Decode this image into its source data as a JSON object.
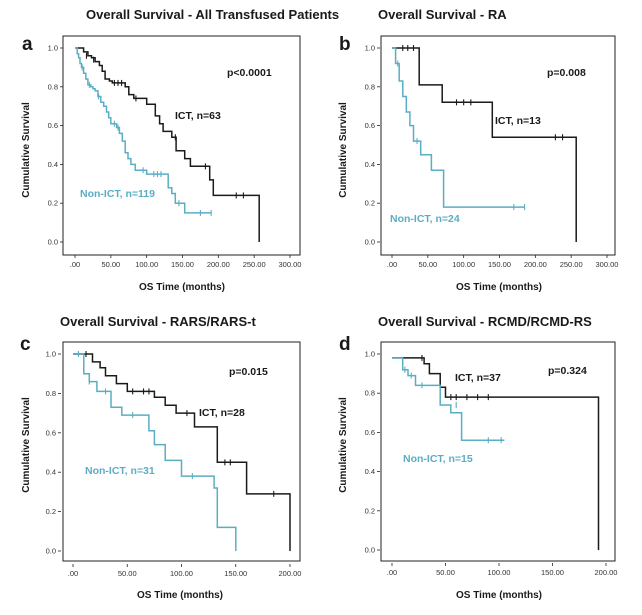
{
  "colors": {
    "ict": "#1a1a1a",
    "non_ict": "#5aaec4"
  },
  "chart_data": [
    {
      "type": "line",
      "panel_letter": "a",
      "title": "Overall Survival - All Transfused Patients",
      "xlabel": "OS Time (months)",
      "ylabel": "Cumulative Survival",
      "xlim": [
        0,
        300
      ],
      "ylim": [
        0,
        1
      ],
      "x_ticks": [
        ".00",
        "50.00",
        "100.00",
        "150.00",
        "200.00",
        "250.00",
        "300.00"
      ],
      "x_tick_values": [
        0,
        50,
        100,
        150,
        200,
        250,
        300
      ],
      "y_ticks": [
        "0.0",
        "0.2",
        "0.4",
        "0.6",
        "0.8",
        "1.0"
      ],
      "y_tick_values": [
        0,
        0.2,
        0.4,
        0.6,
        0.8,
        1.0
      ],
      "p_value": "p<0.0001",
      "series": [
        {
          "name": "ICT, n=63",
          "color": "#1a1a1a",
          "steps": [
            [
              0,
              1.0
            ],
            [
              12,
              0.98
            ],
            [
              18,
              0.96
            ],
            [
              23,
              0.95
            ],
            [
              28,
              0.93
            ],
            [
              34,
              0.91
            ],
            [
              38,
              0.88
            ],
            [
              42,
              0.84
            ],
            [
              48,
              0.83
            ],
            [
              52,
              0.82
            ],
            [
              70,
              0.8
            ],
            [
              75,
              0.76
            ],
            [
              82,
              0.74
            ],
            [
              100,
              0.71
            ],
            [
              112,
              0.65
            ],
            [
              118,
              0.61
            ],
            [
              123,
              0.57
            ],
            [
              135,
              0.54
            ],
            [
              141,
              0.47
            ],
            [
              153,
              0.43
            ],
            [
              161,
              0.39
            ],
            [
              188,
              0.32
            ],
            [
              193,
              0.24
            ],
            [
              257,
              0.0
            ]
          ],
          "end_x": 257,
          "censors": [
            [
              16,
              0.96
            ],
            [
              26,
              0.94
            ],
            [
              55,
              0.82
            ],
            [
              60,
              0.82
            ],
            [
              65,
              0.82
            ],
            [
              85,
              0.74
            ],
            [
              140,
              0.54
            ],
            [
              182,
              0.39
            ],
            [
              225,
              0.24
            ],
            [
              235,
              0.24
            ]
          ]
        },
        {
          "name": "Non-ICT, n=119",
          "color": "#5aaec4",
          "steps": [
            [
              0,
              1.0
            ],
            [
              3,
              0.97
            ],
            [
              5,
              0.95
            ],
            [
              7,
              0.92
            ],
            [
              9,
              0.9
            ],
            [
              12,
              0.87
            ],
            [
              15,
              0.84
            ],
            [
              18,
              0.81
            ],
            [
              22,
              0.8
            ],
            [
              25,
              0.79
            ],
            [
              28,
              0.78
            ],
            [
              32,
              0.75
            ],
            [
              36,
              0.72
            ],
            [
              40,
              0.7
            ],
            [
              44,
              0.67
            ],
            [
              47,
              0.64
            ],
            [
              50,
              0.61
            ],
            [
              58,
              0.59
            ],
            [
              62,
              0.56
            ],
            [
              66,
              0.52
            ],
            [
              70,
              0.46
            ],
            [
              74,
              0.43
            ],
            [
              78,
              0.4
            ],
            [
              84,
              0.37
            ],
            [
              100,
              0.35
            ],
            [
              130,
              0.28
            ],
            [
              135,
              0.25
            ],
            [
              140,
              0.2
            ],
            [
              153,
              0.15
            ],
            [
              190,
              0.15
            ]
          ],
          "end_x": 190,
          "censors": [
            [
              10,
              0.9
            ],
            [
              20,
              0.81
            ],
            [
              33,
              0.75
            ],
            [
              55,
              0.61
            ],
            [
              60,
              0.59
            ],
            [
              95,
              0.37
            ],
            [
              110,
              0.35
            ],
            [
              115,
              0.35
            ],
            [
              120,
              0.35
            ],
            [
              145,
              0.2
            ],
            [
              175,
              0.15
            ],
            [
              190,
              0.15
            ]
          ]
        }
      ],
      "annotations": {
        "ict_label": "ICT, n=63",
        "non_ict_label": "Non-ICT, n=119"
      }
    },
    {
      "type": "line",
      "panel_letter": "b",
      "title": "Overall Survival - RA",
      "xlabel": "OS Time (months)",
      "ylabel": "Cumulative Survival",
      "xlim": [
        0,
        300
      ],
      "ylim": [
        0,
        1
      ],
      "x_ticks": [
        ".00",
        "50.00",
        "100.00",
        "150.00",
        "200.00",
        "250.00",
        "300.00"
      ],
      "x_tick_values": [
        0,
        50,
        100,
        150,
        200,
        250,
        300
      ],
      "y_ticks": [
        "0.0",
        "0.2",
        "0.4",
        "0.6",
        "0.8",
        "1.0"
      ],
      "y_tick_values": [
        0,
        0.2,
        0.4,
        0.6,
        0.8,
        1.0
      ],
      "p_value": "p=0.008",
      "series": [
        {
          "name": "ICT, n=13",
          "color": "#1a1a1a",
          "steps": [
            [
              0,
              1.0
            ],
            [
              38,
              0.81
            ],
            [
              70,
              0.72
            ],
            [
              140,
              0.54
            ],
            [
              257,
              0.0
            ]
          ],
          "end_x": 257,
          "censors": [
            [
              15,
              1.0
            ],
            [
              22,
              1.0
            ],
            [
              30,
              1.0
            ],
            [
              90,
              0.72
            ],
            [
              100,
              0.72
            ],
            [
              110,
              0.72
            ],
            [
              228,
              0.54
            ],
            [
              238,
              0.54
            ]
          ]
        },
        {
          "name": "Non-ICT, n=24",
          "color": "#5aaec4",
          "steps": [
            [
              0,
              1.0
            ],
            [
              5,
              0.92
            ],
            [
              10,
              0.83
            ],
            [
              15,
              0.75
            ],
            [
              20,
              0.67
            ],
            [
              25,
              0.6
            ],
            [
              30,
              0.52
            ],
            [
              40,
              0.45
            ],
            [
              55,
              0.37
            ],
            [
              72,
              0.18
            ],
            [
              185,
              0.18
            ]
          ],
          "end_x": 185,
          "censors": [
            [
              8,
              0.92
            ],
            [
              35,
              0.52
            ],
            [
              170,
              0.18
            ],
            [
              185,
              0.18
            ]
          ]
        }
      ],
      "annotations": {
        "ict_label": "ICT, n=13",
        "non_ict_label": "Non-ICT, n=24"
      }
    },
    {
      "type": "line",
      "panel_letter": "c",
      "title": "Overall Survival - RARS/RARS-t",
      "xlabel": "OS Time (months)",
      "ylabel": "Cumulative Survival",
      "xlim": [
        0,
        200
      ],
      "ylim": [
        0,
        1
      ],
      "x_ticks": [
        ".00",
        "50.00",
        "100.00",
        "150.00",
        "200.00"
      ],
      "x_tick_values": [
        0,
        50,
        100,
        150,
        200
      ],
      "y_ticks": [
        "0.0",
        "0.2",
        "0.4",
        "0.6",
        "0.8",
        "1.0"
      ],
      "y_tick_values": [
        0,
        0.2,
        0.4,
        0.6,
        0.8,
        1.0
      ],
      "p_value": "p=0.015",
      "series": [
        {
          "name": "ICT, n=28",
          "color": "#1a1a1a",
          "steps": [
            [
              0,
              1.0
            ],
            [
              18,
              0.96
            ],
            [
              25,
              0.93
            ],
            [
              30,
              0.89
            ],
            [
              40,
              0.85
            ],
            [
              50,
              0.81
            ],
            [
              75,
              0.78
            ],
            [
              85,
              0.74
            ],
            [
              95,
              0.7
            ],
            [
              112,
              0.63
            ],
            [
              133,
              0.45
            ],
            [
              160,
              0.29
            ],
            [
              200,
              0.0
            ]
          ],
          "end_x": 200,
          "censors": [
            [
              12,
              1.0
            ],
            [
              55,
              0.81
            ],
            [
              65,
              0.81
            ],
            [
              70,
              0.81
            ],
            [
              105,
              0.7
            ],
            [
              140,
              0.45
            ],
            [
              145,
              0.45
            ],
            [
              185,
              0.29
            ]
          ]
        },
        {
          "name": "Non-ICT, n=31",
          "color": "#5aaec4",
          "steps": [
            [
              0,
              1.0
            ],
            [
              10,
              0.9
            ],
            [
              15,
              0.86
            ],
            [
              22,
              0.81
            ],
            [
              35,
              0.73
            ],
            [
              45,
              0.69
            ],
            [
              70,
              0.61
            ],
            [
              75,
              0.54
            ],
            [
              85,
              0.46
            ],
            [
              100,
              0.38
            ],
            [
              130,
              0.32
            ],
            [
              133,
              0.12
            ],
            [
              150,
              0.0
            ]
          ],
          "end_x": 150,
          "censors": [
            [
              5,
              1.0
            ],
            [
              15,
              0.86
            ],
            [
              30,
              0.81
            ],
            [
              55,
              0.69
            ],
            [
              110,
              0.38
            ]
          ]
        }
      ],
      "annotations": {
        "ict_label": "ICT, n=28",
        "non_ict_label": "Non-ICT, n=31"
      }
    },
    {
      "type": "line",
      "panel_letter": "d",
      "title": "Overall Survival - RCMD/RCMD-RS",
      "xlabel": "OS Time (months)",
      "ylabel": "Cumulative Survival",
      "xlim": [
        0,
        200
      ],
      "ylim": [
        0,
        1
      ],
      "x_ticks": [
        ".00",
        "50.00",
        "100.00",
        "150.00",
        "200.00"
      ],
      "x_tick_values": [
        0,
        50,
        100,
        150,
        200
      ],
      "y_ticks": [
        "0.0",
        "0.2",
        "0.4",
        "0.6",
        "0.8",
        "1.0"
      ],
      "y_tick_values": [
        0,
        0.2,
        0.4,
        0.6,
        0.8,
        1.0
      ],
      "p_value": "p=0.324",
      "series": [
        {
          "name": "ICT, n=37",
          "color": "#1a1a1a",
          "steps": [
            [
              0,
              0.98
            ],
            [
              30,
              0.95
            ],
            [
              35,
              0.9
            ],
            [
              45,
              0.83
            ],
            [
              50,
              0.78
            ],
            [
              193,
              0.0
            ]
          ],
          "end_x": 193,
          "censors": [
            [
              28,
              0.98
            ],
            [
              55,
              0.78
            ],
            [
              60,
              0.78
            ],
            [
              70,
              0.78
            ],
            [
              80,
              0.78
            ],
            [
              90,
              0.78
            ]
          ]
        },
        {
          "name": "Non-ICT, n=15",
          "color": "#5aaec4",
          "steps": [
            [
              0,
              0.98
            ],
            [
              10,
              0.92
            ],
            [
              15,
              0.89
            ],
            [
              22,
              0.84
            ],
            [
              45,
              0.74
            ],
            [
              55,
              0.7
            ],
            [
              65,
              0.56
            ],
            [
              105,
              0.56
            ]
          ],
          "end_x": 105,
          "censors": [
            [
              12,
              0.92
            ],
            [
              18,
              0.89
            ],
            [
              28,
              0.84
            ],
            [
              60,
              0.74
            ],
            [
              90,
              0.56
            ],
            [
              102,
              0.56
            ]
          ]
        }
      ],
      "annotations": {
        "ict_label": "ICT, n=37",
        "non_ict_label": "Non-ICT, n=15"
      }
    }
  ]
}
